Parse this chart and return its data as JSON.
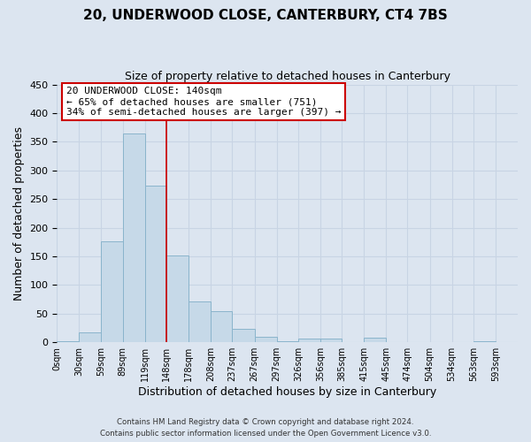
{
  "title": "20, UNDERWOOD CLOSE, CANTERBURY, CT4 7BS",
  "subtitle": "Size of property relative to detached houses in Canterbury",
  "xlabel": "Distribution of detached houses by size in Canterbury",
  "ylabel": "Number of detached properties",
  "bar_color": "#c6d9e8",
  "bar_edge_color": "#8ab4cc",
  "bin_labels": [
    "0sqm",
    "30sqm",
    "59sqm",
    "89sqm",
    "119sqm",
    "148sqm",
    "178sqm",
    "208sqm",
    "237sqm",
    "267sqm",
    "297sqm",
    "326sqm",
    "356sqm",
    "385sqm",
    "415sqm",
    "445sqm",
    "474sqm",
    "504sqm",
    "534sqm",
    "563sqm",
    "593sqm"
  ],
  "bar_heights": [
    2,
    18,
    176,
    365,
    273,
    151,
    72,
    54,
    24,
    9,
    2,
    6,
    6,
    1,
    8,
    1,
    0,
    1,
    0,
    2,
    0
  ],
  "property_line_x": 148,
  "property_line_label": "20 UNDERWOOD CLOSE: 140sqm",
  "annotation_line1": "← 65% of detached houses are smaller (751)",
  "annotation_line2": "34% of semi-detached houses are larger (397) →",
  "annotation_box_color": "#ffffff",
  "annotation_box_edge_color": "#cc0000",
  "ylim": [
    0,
    450
  ],
  "yticks": [
    0,
    50,
    100,
    150,
    200,
    250,
    300,
    350,
    400,
    450
  ],
  "grid_color": "#c8d4e4",
  "background_color": "#dce5f0",
  "footer1": "Contains HM Land Registry data © Crown copyright and database right 2024.",
  "footer2": "Contains public sector information licensed under the Open Government Licence v3.0.",
  "bin_starts": [
    0,
    30,
    59,
    89,
    119,
    148,
    178,
    208,
    237,
    267,
    297,
    326,
    356,
    385,
    415,
    445,
    474,
    504,
    534,
    563,
    593
  ],
  "xlim_max": 623
}
